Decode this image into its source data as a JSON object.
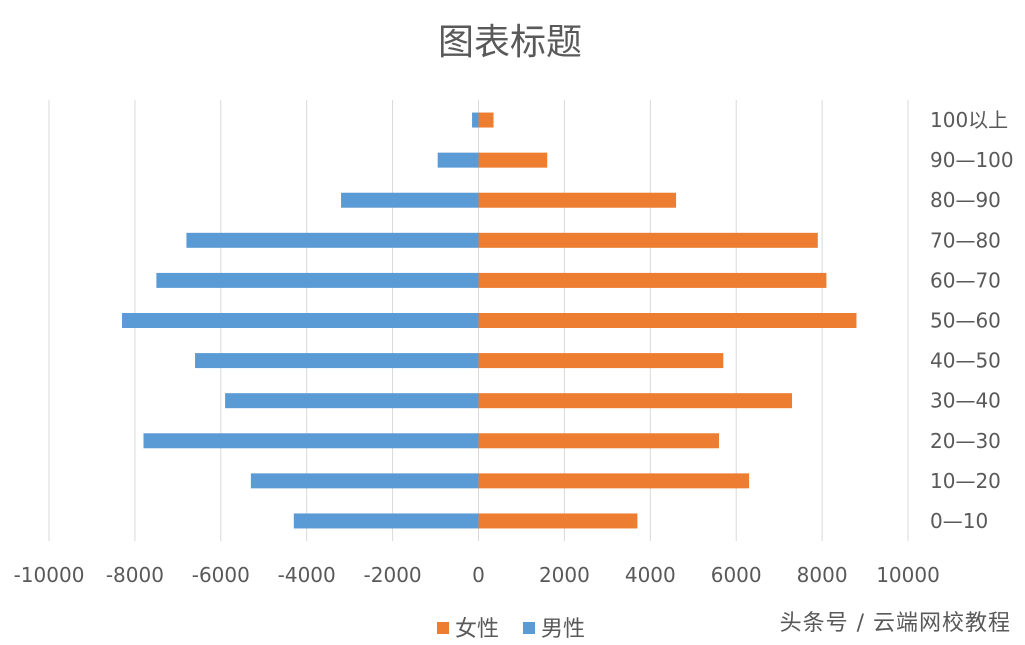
{
  "chart_data": {
    "type": "bar",
    "orientation": "horizontal",
    "title": "图表标题",
    "categories": [
      "0—10",
      "10—20",
      "20—30",
      "30—40",
      "40—50",
      "50—60",
      "60—70",
      "70—80",
      "80—90",
      "90—100",
      "100以上"
    ],
    "series": [
      {
        "name": "女性",
        "color": "#ED7D31",
        "values": [
          3700,
          6300,
          5600,
          7300,
          5700,
          8800,
          8100,
          7900,
          4600,
          1600,
          350
        ]
      },
      {
        "name": "男性",
        "color": "#5B9BD5",
        "values": [
          -4300,
          -5300,
          -7800,
          -5900,
          -6600,
          -8300,
          -7500,
          -6800,
          -3200,
          -950,
          -150
        ]
      }
    ],
    "xlim": [
      -10000,
      10000
    ],
    "xticks": [
      -10000,
      -8000,
      -6000,
      -4000,
      -2000,
      0,
      2000,
      4000,
      6000,
      8000,
      10000
    ],
    "grid": true,
    "legend_position": "bottom",
    "category_labels_side": "right"
  },
  "watermark": "头条号 / 云端网校教程"
}
